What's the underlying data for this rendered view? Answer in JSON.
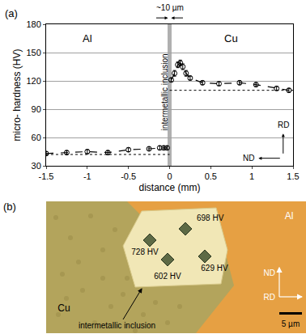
{
  "chart_data": {
    "type": "line",
    "panel_label": "(a)",
    "x_label": "distance (mm)",
    "y_label": "micro- hardness (HV)",
    "xlim": [
      -1.5,
      1.5
    ],
    "xticks": [
      -1.5,
      -1,
      -0.5,
      0,
      0.5,
      1,
      1.5
    ],
    "ylim": [
      30,
      180
    ],
    "yticks": [
      30,
      60,
      90,
      120,
      150,
      180
    ],
    "grid": true,
    "series": [
      {
        "color": "#000000",
        "marker": "open_circle",
        "line_style": "dashed",
        "x": [
          -1.5,
          -1.25,
          -1.0,
          -0.75,
          -0.5,
          -0.25,
          -0.12,
          -0.07,
          -0.03
        ],
        "values": [
          43,
          44,
          45,
          44,
          47,
          48,
          49,
          49,
          49
        ],
        "errors": [
          2,
          2,
          2,
          2,
          2,
          2,
          2,
          2,
          2
        ]
      },
      {
        "color": "#000000",
        "marker": "open_circle",
        "line_style": "dashed",
        "x": [
          0.02,
          0.06,
          0.1,
          0.13,
          0.16,
          0.2,
          0.25,
          0.4,
          0.6,
          0.85,
          1.05,
          1.3,
          1.45
        ],
        "values": [
          121,
          128,
          137,
          139,
          135,
          128,
          123,
          118,
          117,
          118,
          116,
          112,
          110
        ],
        "errors": [
          2,
          3,
          3,
          3,
          3,
          3,
          2,
          2,
          2,
          2,
          2,
          2,
          2
        ]
      },
      {
        "color": "#000000",
        "line_style": "dotted",
        "x": [
          -1.5,
          0
        ],
        "values": [
          42,
          42
        ]
      },
      {
        "color": "#000000",
        "line_style": "dotted",
        "x": [
          0,
          1.5
        ],
        "values": [
          110,
          110
        ]
      }
    ],
    "annotations": {
      "left_region": "Al",
      "right_region": "Cu",
      "interface": "intermetallic inclusion",
      "interface_width": "~10 µm",
      "rd": "RD",
      "nd": "ND"
    }
  },
  "micrograph": {
    "panel_label": "(b)",
    "regions": {
      "top_right": "Al",
      "bottom_left": "Cu"
    },
    "indents": [
      "728 HV",
      "698 HV",
      "602 HV",
      "629 HV"
    ],
    "inclusion_label": "intermetallic inclusion",
    "scale_bar": "5 µm",
    "directions": {
      "vertical": "ND",
      "horizontal": "RD"
    }
  }
}
